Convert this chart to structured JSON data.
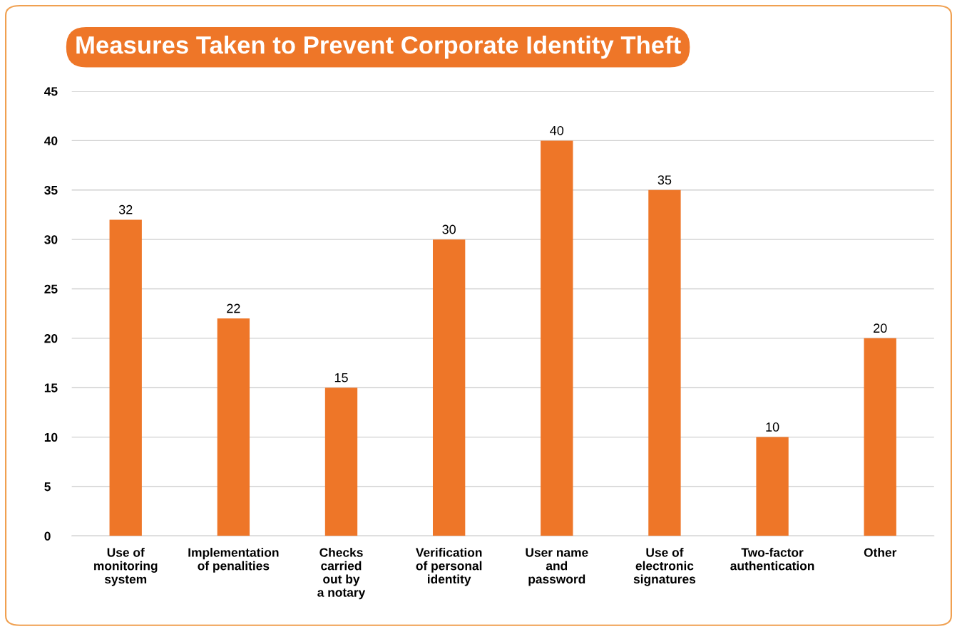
{
  "chart_data": {
    "type": "bar",
    "title": "Measures Taken to Prevent Corporate Identity Theft",
    "categories": [
      "Use of\nmonitoring\nsystem",
      "Implementation\nof penalities",
      "Checks\ncarried\nout by\na notary",
      "Verification\nof personal\nidentity",
      "User name\nand\npassword",
      "Use of\nelectronic\nsignatures",
      "Two-factor\nauthentication",
      "Other"
    ],
    "values": [
      32,
      22,
      15,
      30,
      40,
      35,
      10,
      20
    ],
    "color": "#ee7628",
    "ylim": [
      0,
      45
    ],
    "yticks": [
      0,
      5,
      10,
      15,
      20,
      25,
      30,
      35,
      40,
      45
    ],
    "grid": "y",
    "data_labels": true
  }
}
